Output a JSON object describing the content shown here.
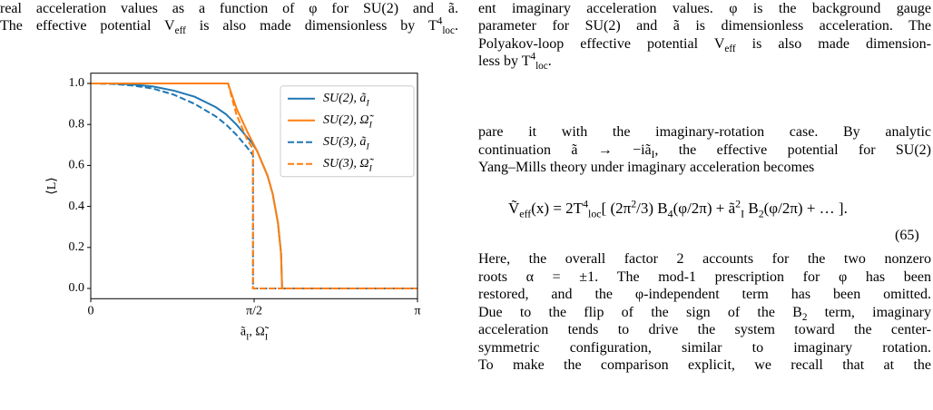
{
  "left_text": [
    "real acceleration values as a function of φ for SU(2) and ã.",
    "The effective potential V_{eff} is also made dimensionless by T^{4}_{loc}."
  ],
  "right_caption": [
    "ent imaginary acceleration values. φ is the background gauge",
    "parameter for SU(2) and ã is dimensionless acceleration. The",
    "Polyakov-loop effective potential V_{eff} is also made dimension-",
    "less by T^{4}_{loc}."
  ],
  "paragraph_1": [
    "pare it with the imaginary-rotation case. By analytic",
    "continuation ã → −iã_{I}, the effective potential for SU(2)",
    "Yang–Mills theory under imaginary acceleration becomes"
  ],
  "equation": {
    "text": "Ṽ_{eff}(x) = 2T^{4}_{loc}[ (2π^{2}/3) B_{4}(φ/2π) + ã^{2}_{I} B_{2}(φ/2π) + … ].",
    "number": "(65)"
  },
  "paragraph_2": [
    "Here, the overall factor 2 accounts for the two nonzero",
    "roots α = ±1. The mod-1 prescription for φ has been",
    "restored, and the φ-independent term has been omitted.",
    "Due to the flip of the sign of the B_{2} term, imaginary",
    "acceleration tends to drive the system toward the center-",
    "symmetric configuration, similar to imaginary rotation.",
    "To make the comparison explicit, we recall that at the"
  ],
  "chart_data": {
    "type": "line",
    "xlabel": "ã_{I}, Ω̃_{I}",
    "ylabel": "⟨L⟩",
    "xlim": [
      0,
      3.14159
    ],
    "xticks": [
      0,
      {
        "value": 1.5708,
        "label": "π/2"
      },
      {
        "value": 3.14159,
        "label": "π"
      }
    ],
    "ylim": [
      -0.05,
      1.05
    ],
    "yticks": [
      {
        "value": 0,
        "label": "0.0"
      },
      0.2,
      0.4,
      0.6,
      0.8,
      {
        "value": 1,
        "label": "1.0"
      }
    ],
    "legend": "upper right",
    "series": [
      {
        "name": "SU(2), ã_{I}",
        "color": "#1f77b4",
        "linestyle": "solid",
        "x": [
          0,
          0.2,
          0.4,
          0.6,
          0.8,
          1.0,
          1.2,
          1.3,
          1.4,
          1.5,
          1.55,
          1.6,
          1.7,
          1.75,
          1.8,
          1.83,
          1.84,
          2.5,
          3.14159
        ],
        "values": [
          1.0,
          1.0,
          0.995,
          0.985,
          0.965,
          0.935,
          0.885,
          0.85,
          0.8,
          0.74,
          0.71,
          0.67,
          0.55,
          0.46,
          0.32,
          0.17,
          0,
          0,
          0
        ]
      },
      {
        "name": "SU(2), Ω̃_{I}",
        "color": "#ff7f0e",
        "linestyle": "solid",
        "x": [
          0,
          1.0,
          1.32,
          1.4,
          1.5,
          1.55,
          1.6,
          1.7,
          1.75,
          1.8,
          1.83,
          1.84,
          2.5,
          3.14159
        ],
        "values": [
          1.0,
          1.0,
          1.0,
          0.88,
          0.77,
          0.72,
          0.67,
          0.55,
          0.46,
          0.32,
          0.17,
          0,
          0,
          0
        ]
      },
      {
        "name": "SU(3), ã_{I}",
        "color": "#1f77b4",
        "linestyle": "dashed",
        "x": [
          0,
          0.2,
          0.4,
          0.6,
          0.8,
          1.0,
          1.2,
          1.3,
          1.4,
          1.5,
          1.56,
          1.56,
          2.5,
          3.14159
        ],
        "values": [
          1.0,
          0.998,
          0.99,
          0.975,
          0.945,
          0.9,
          0.84,
          0.8,
          0.75,
          0.69,
          0.65,
          0,
          0,
          0
        ]
      },
      {
        "name": "SU(3), Ω̃_{I}",
        "color": "#ff7f0e",
        "linestyle": "dashed",
        "x": [
          0,
          1.0,
          1.32,
          1.4,
          1.5,
          1.56,
          1.56,
          2.5,
          3.14159
        ],
        "values": [
          1.0,
          1.0,
          1.0,
          0.85,
          0.73,
          0.68,
          0,
          0,
          0
        ]
      }
    ]
  }
}
